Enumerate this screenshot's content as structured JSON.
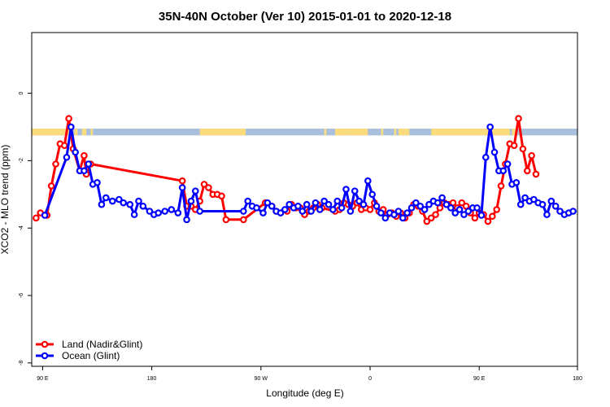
{
  "chart_data": {
    "type": "line",
    "title": "35N-40N October (Ver 10)   2015-01-01 to 2020-12-18",
    "xlabel": "Longitude (deg E)",
    "ylabel": "XCO2 - MLO trend (ppm)",
    "xlim": [
      85,
      335
    ],
    "ylim": [
      -8.1,
      1.8
    ],
    "x_ticks": [
      {
        "value": 90,
        "label": "90 E"
      },
      {
        "value": 140,
        "label": "180"
      },
      {
        "value": 190,
        "label": "90 W"
      },
      {
        "value": 240,
        "label": "0"
      },
      {
        "value": 290,
        "label": "90 E"
      },
      {
        "value": 335,
        "label": "180"
      }
    ],
    "y_ticks": [
      {
        "value": 0,
        "label": "0"
      },
      {
        "value": -2,
        "label": "-2"
      },
      {
        "value": -4,
        "label": "-4"
      },
      {
        "value": -6,
        "label": "-6"
      },
      {
        "value": -8,
        "label": "-8"
      }
    ],
    "grid": false,
    "legend_position": "bottom-left",
    "land_ocean_strip": {
      "y_top": -1.05,
      "y_bottom": -1.25,
      "ocean_color": "#a9c0dc",
      "land_color": "#fadb7e",
      "land_segments": [
        [
          85,
          104
        ],
        [
          104.5,
          106
        ],
        [
          108,
          110
        ],
        [
          112,
          113
        ],
        [
          162,
          183
        ],
        [
          219,
          220
        ],
        [
          224,
          230
        ],
        [
          230,
          239
        ],
        [
          245,
          246
        ],
        [
          251,
          252
        ],
        [
          253,
          258
        ],
        [
          268,
          304
        ],
        [
          305,
          307
        ]
      ]
    },
    "series": [
      {
        "name": "Land (Nadir&Glint)",
        "color": "#ff0000",
        "x": [
          87,
          89,
          92,
          94,
          96,
          98,
          100,
          102,
          104,
          107,
          109,
          110,
          112,
          154,
          156,
          158,
          160,
          162,
          164,
          166,
          168,
          170,
          172,
          174,
          182,
          192,
          195,
          197,
          202,
          204,
          206,
          208,
          210,
          212,
          214,
          216,
          218,
          224,
          226,
          228,
          230,
          232,
          234,
          236,
          238,
          240,
          242,
          244,
          246,
          248,
          250,
          252,
          254,
          256,
          258,
          260,
          262,
          264,
          266,
          268,
          270,
          272,
          274,
          276,
          278,
          280,
          282,
          284,
          286,
          288,
          290,
          292,
          294,
          296,
          298,
          300,
          302,
          304,
          306,
          308,
          310,
          312,
          314,
          316
        ],
        "y": [
          -3.7,
          -3.55,
          -3.62,
          -2.75,
          -2.1,
          -1.5,
          -1.55,
          -0.75,
          -1.65,
          -2.3,
          -1.85,
          -2.4,
          -2.1,
          -2.6,
          -3.35,
          -3.35,
          -3.45,
          -3.2,
          -2.7,
          -2.8,
          -3.0,
          -3.0,
          -3.05,
          -3.75,
          -3.75,
          -3.25,
          -3.35,
          -3.5,
          -3.5,
          -3.3,
          -3.4,
          -3.4,
          -3.6,
          -3.5,
          -3.4,
          -3.3,
          -3.4,
          -3.5,
          -3.45,
          -3.25,
          -3.3,
          -3.35,
          -3.25,
          -3.45,
          -3.4,
          -3.45,
          -3.25,
          -3.5,
          -3.45,
          -3.6,
          -3.55,
          -3.65,
          -3.55,
          -3.7,
          -3.55,
          -3.3,
          -3.35,
          -3.5,
          -3.8,
          -3.7,
          -3.6,
          -3.4,
          -3.25,
          -3.3,
          -3.25,
          -3.4,
          -3.25,
          -3.35,
          -3.55,
          -3.7,
          -3.55,
          -3.6,
          -3.8,
          -3.65,
          -3.45,
          -2.75,
          -2.1,
          -1.5,
          -1.55,
          -0.75,
          -1.65,
          -2.3,
          -1.85,
          -2.4
        ],
        "note": ""
      },
      {
        "name": "Ocean (Glint)",
        "color": "#0000ff",
        "x": [
          91,
          101,
          103,
          105,
          107,
          109,
          111,
          113,
          115,
          117,
          119,
          122,
          125,
          127,
          130,
          132,
          134,
          136,
          139,
          141,
          143,
          146,
          149,
          152,
          154,
          156,
          158,
          160,
          162,
          182,
          184,
          186,
          188,
          191,
          193,
          195,
          197,
          199,
          201,
          203,
          205,
          207,
          209,
          211,
          213,
          215,
          217,
          219,
          221,
          223,
          225,
          227,
          229,
          231,
          233,
          235,
          237,
          239,
          241,
          243,
          245,
          247,
          249,
          251,
          253,
          255,
          257,
          259,
          261,
          263,
          265,
          267,
          269,
          271,
          273,
          275,
          277,
          279,
          281,
          283,
          285,
          287,
          289,
          291,
          293,
          295,
          297,
          299,
          301,
          303,
          305,
          307,
          309,
          311,
          313,
          315,
          317,
          319,
          321,
          323,
          325,
          327,
          329,
          331,
          333
        ],
        "y": [
          -3.62,
          -1.9,
          -1.0,
          -1.75,
          -2.3,
          -2.3,
          -2.1,
          -2.7,
          -2.65,
          -3.3,
          -3.1,
          -3.2,
          -3.15,
          -3.25,
          -3.3,
          -3.6,
          -3.2,
          -3.35,
          -3.5,
          -3.6,
          -3.55,
          -3.5,
          -3.45,
          -3.55,
          -2.8,
          -3.75,
          -3.2,
          -2.9,
          -3.5,
          -3.5,
          -3.2,
          -3.35,
          -3.4,
          -3.55,
          -3.25,
          -3.35,
          -3.5,
          -3.55,
          -3.45,
          -3.3,
          -3.4,
          -3.35,
          -3.5,
          -3.3,
          -3.5,
          -3.25,
          -3.45,
          -3.2,
          -3.3,
          -3.45,
          -3.2,
          -3.4,
          -2.85,
          -3.5,
          -2.9,
          -3.2,
          -3.3,
          -2.6,
          -3.0,
          -3.35,
          -3.55,
          -3.7,
          -3.55,
          -3.6,
          -3.5,
          -3.7,
          -3.55,
          -3.4,
          -3.25,
          -3.35,
          -3.45,
          -3.3,
          -3.2,
          -3.25,
          -3.1,
          -3.3,
          -3.4,
          -3.55,
          -3.45,
          -3.6,
          -3.5,
          -3.4,
          -3.4,
          -3.62,
          -1.9,
          -1.0,
          -1.75,
          -2.3,
          -2.3,
          -2.1,
          -2.7,
          -2.65,
          -3.3,
          -3.1,
          -3.2,
          -3.15,
          -3.25,
          -3.3,
          -3.6,
          -3.2,
          -3.35,
          -3.5,
          -3.6,
          -3.55,
          -3.5
        ],
        "note": ""
      }
    ]
  }
}
